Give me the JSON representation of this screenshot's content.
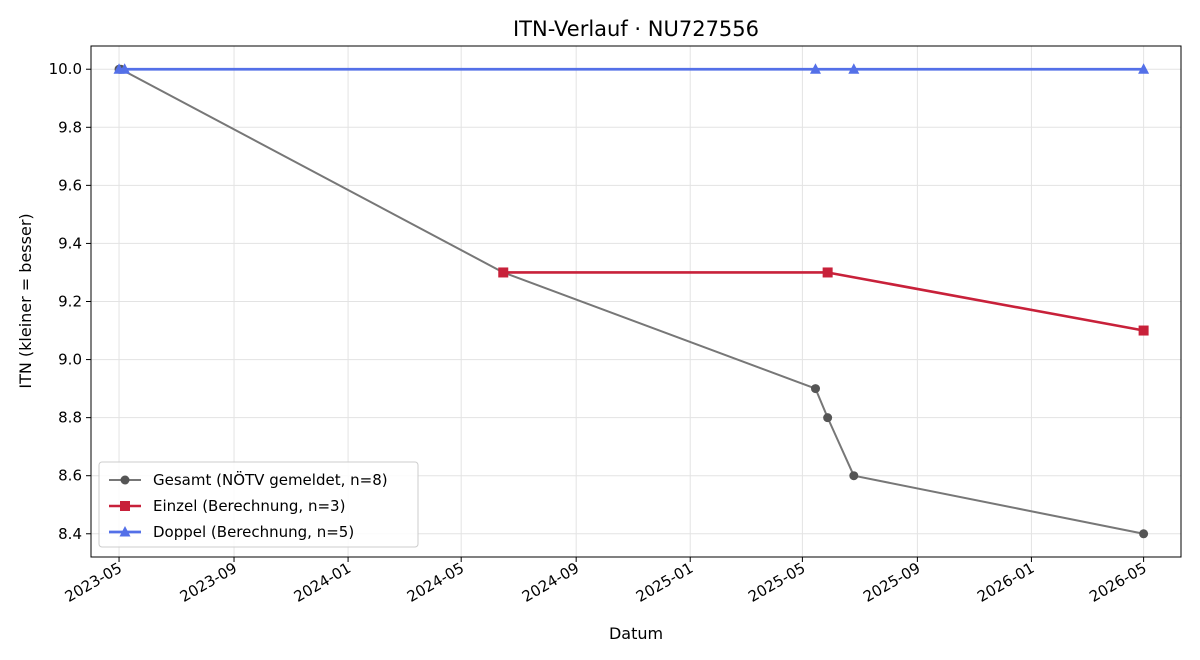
{
  "chart_data": {
    "type": "line",
    "title": "ITN-Verlauf · NU727556",
    "xlabel": "Datum",
    "ylabel": "ITN  (kleiner = besser)",
    "x_type": "date",
    "xlim": [
      "2023-04-01",
      "2026-06-10"
    ],
    "ylim": [
      8.32,
      10.08
    ],
    "x_ticks": [
      "2023-05",
      "2023-09",
      "2024-01",
      "2024-05",
      "2024-09",
      "2025-01",
      "2025-05",
      "2025-09",
      "2026-01",
      "2026-05"
    ],
    "y_ticks": [
      "8.4",
      "8.6",
      "8.8",
      "9.0",
      "9.2",
      "9.4",
      "9.6",
      "9.8",
      "10.0"
    ],
    "grid": true,
    "legend_position": "lower-left",
    "series": [
      {
        "name": "Gesamt (NÖTV gemeldet, n=8)",
        "color": "#777777",
        "marker": "circle",
        "points": [
          {
            "x": "2023-05-01",
            "y": 10.0
          },
          {
            "x": "2023-05-03",
            "y": 10.0
          },
          {
            "x": "2024-06-15",
            "y": 9.3
          },
          {
            "x": "2025-05-15",
            "y": 8.9
          },
          {
            "x": "2025-05-28",
            "y": 8.8
          },
          {
            "x": "2025-06-25",
            "y": 8.6
          },
          {
            "x": "2026-05-01",
            "y": 8.4
          }
        ]
      },
      {
        "name": "Einzel (Berechnung, n=3)",
        "color": "#c8213a",
        "marker": "square",
        "points": [
          {
            "x": "2024-06-15",
            "y": 9.3
          },
          {
            "x": "2025-05-28",
            "y": 9.3
          },
          {
            "x": "2026-05-01",
            "y": 9.1
          }
        ]
      },
      {
        "name": "Doppel (Berechnung, n=5)",
        "color": "#5470e8",
        "marker": "triangle",
        "points": [
          {
            "x": "2023-05-01",
            "y": 10.0
          },
          {
            "x": "2023-05-07",
            "y": 10.0
          },
          {
            "x": "2025-05-15",
            "y": 10.0
          },
          {
            "x": "2025-06-25",
            "y": 10.0
          },
          {
            "x": "2026-05-01",
            "y": 10.0
          }
        ]
      }
    ]
  }
}
